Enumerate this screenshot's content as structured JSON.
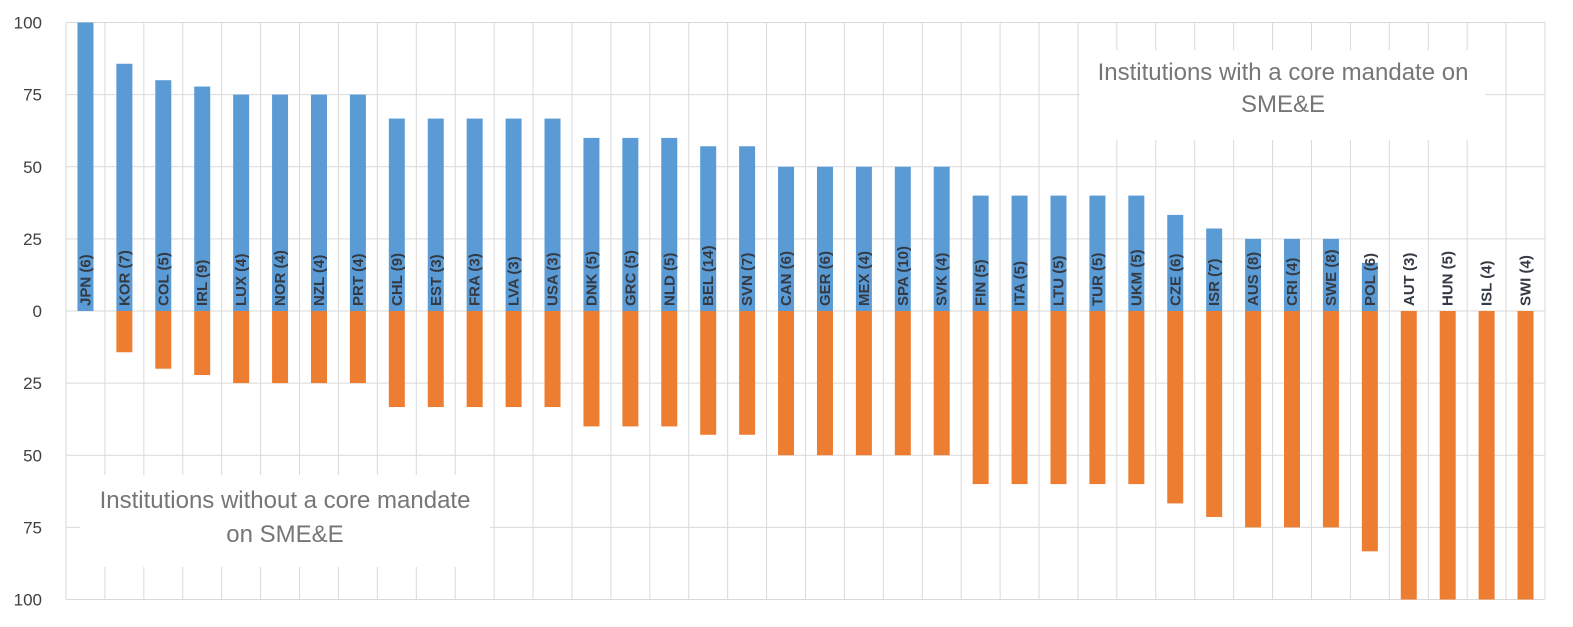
{
  "chart_data": {
    "type": "bar",
    "categories": [
      "JPN (6)",
      "KOR (7)",
      "COL (5)",
      "IRL (9)",
      "LUX (4)",
      "NOR (4)",
      "NZL (4)",
      "PRT (4)",
      "CHL (9)",
      "EST (3)",
      "FRA (3)",
      "LVA (3)",
      "USA (3)",
      "DNK (5)",
      "GRC (5)",
      "NLD (5)",
      "BEL (14)",
      "SVN (7)",
      "CAN (6)",
      "GER (6)",
      "MEX (4)",
      "SPA (10)",
      "SVK (4)",
      "FIN (5)",
      "ITA (5)",
      "LTU (5)",
      "TUR (5)",
      "UKM (5)",
      "CZE (6)",
      "ISR (7)",
      "AUS (8)",
      "CRI (4)",
      "SWE (8)",
      "POL (6)",
      "AUT (3)",
      "HUN (5)",
      "ISL (4)",
      "SWI (4)"
    ],
    "series": [
      {
        "values": [
          100,
          85.7,
          80,
          77.8,
          75,
          75,
          75,
          75,
          66.7,
          66.7,
          66.7,
          66.7,
          66.7,
          60,
          60,
          60,
          57.1,
          57.1,
          50,
          50,
          50,
          50,
          50,
          40,
          40,
          40,
          40,
          40,
          33.3,
          28.6,
          25,
          25,
          25,
          16.7,
          0,
          0,
          0,
          0
        ]
      },
      {
        "values": [
          0,
          14.3,
          20,
          22.2,
          25,
          25,
          25,
          25,
          33.3,
          33.3,
          33.3,
          33.3,
          33.3,
          40,
          40,
          40,
          42.9,
          42.9,
          50,
          50,
          50,
          50,
          50,
          60,
          60,
          60,
          60,
          60,
          66.7,
          71.4,
          75,
          75,
          75,
          83.3,
          100,
          100,
          100,
          100
        ]
      }
    ],
    "colors": {
      "with_core_mandate": "#5b9bd5",
      "without_core_mandate": "#ed7d31"
    },
    "yticks_top": [
      "100",
      "75",
      "50",
      "25",
      "0"
    ],
    "yticks_bottom": [
      "25",
      "50",
      "75",
      "100"
    ],
    "ylim": [
      -100,
      100
    ],
    "grid": true,
    "annotations": {
      "top_right": [
        "Institutions with a core mandate on",
        "SME&E"
      ],
      "bottom_left": [
        "Institutions without a core mandate",
        "on SME&E"
      ]
    }
  }
}
